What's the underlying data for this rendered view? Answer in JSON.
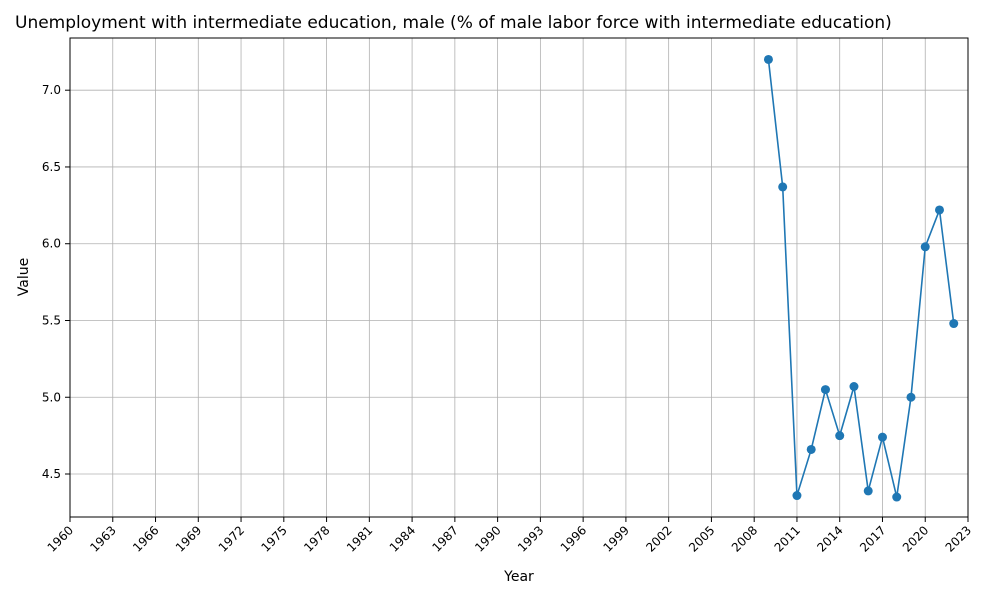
{
  "chart_data": {
    "type": "line",
    "title": "Unemployment with intermediate education, male (% of male labor force with intermediate education)",
    "xlabel": "Year",
    "ylabel": "Value",
    "xlim": [
      1960,
      2023
    ],
    "ylim": [
      4.22,
      7.34
    ],
    "grid": true,
    "x_ticks": [
      1960,
      1963,
      1966,
      1969,
      1972,
      1975,
      1978,
      1981,
      1984,
      1987,
      1990,
      1993,
      1996,
      1999,
      2002,
      2005,
      2008,
      2011,
      2014,
      2017,
      2020,
      2023
    ],
    "y_ticks": [
      4.5,
      5.0,
      5.5,
      6.0,
      6.5,
      7.0
    ],
    "y_tick_labels": [
      "4.5",
      "5.0",
      "5.5",
      "6.0",
      "6.5",
      "7.0"
    ],
    "series": [
      {
        "color": "#1f77b4",
        "marker": "circle",
        "x": [
          2009,
          2010,
          2011,
          2012,
          2013,
          2014,
          2015,
          2016,
          2017,
          2018,
          2019,
          2020,
          2021,
          2022
        ],
        "values": [
          7.2,
          6.37,
          4.36,
          4.66,
          5.05,
          4.75,
          5.07,
          4.39,
          4.74,
          4.35,
          5.0,
          5.98,
          6.22,
          5.48
        ]
      }
    ]
  }
}
